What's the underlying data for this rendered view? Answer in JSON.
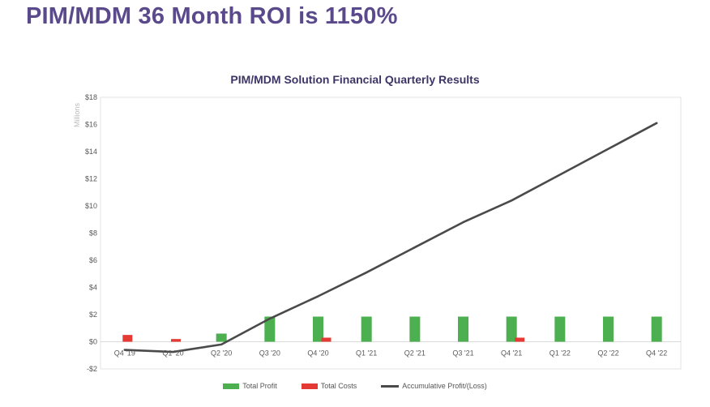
{
  "page": {
    "title": "PIM/MDM 36 Month ROI is 1150%"
  },
  "chart_data": {
    "type": "bar",
    "title": "PIM/MDM Solution Financial Quarterly Results",
    "ylabel": "Millions",
    "xlabel": "",
    "ylim": [
      -2,
      18
    ],
    "y_ticks": [
      -2,
      0,
      2,
      4,
      6,
      8,
      10,
      12,
      14,
      16,
      18
    ],
    "y_tick_labels": [
      "-$2",
      "$0",
      "$2",
      "$4",
      "$6",
      "$8",
      "$10",
      "$12",
      "$14",
      "$16",
      "$18"
    ],
    "categories": [
      "Q4 '19",
      "Q1 '20",
      "Q2 '20",
      "Q3 '20",
      "Q4 '20",
      "Q1 '21",
      "Q2 '21",
      "Q3 '21",
      "Q4 '21",
      "Q1 '22",
      "Q2 '22",
      "Q4 '22"
    ],
    "series": [
      {
        "name": "Total Profit",
        "kind": "bar",
        "color": "#4caf50",
        "values": [
          0,
          0,
          0.6,
          1.85,
          1.85,
          1.85,
          1.85,
          1.85,
          1.85,
          1.85,
          1.85,
          1.85
        ]
      },
      {
        "name": "Total Costs",
        "kind": "bar",
        "color": "#e53935",
        "values": [
          0.5,
          0.2,
          0,
          0,
          0.3,
          0,
          0,
          0,
          0.3,
          0,
          0,
          0
        ]
      },
      {
        "name": "Accumulative Profit/(Loss)",
        "kind": "line",
        "color": "#4a4a4a",
        "values": [
          -0.6,
          -0.75,
          -0.2,
          1.7,
          3.35,
          5.1,
          6.95,
          8.8,
          10.4,
          12.3,
          14.2,
          16.1
        ]
      }
    ],
    "legend_position": "bottom"
  }
}
